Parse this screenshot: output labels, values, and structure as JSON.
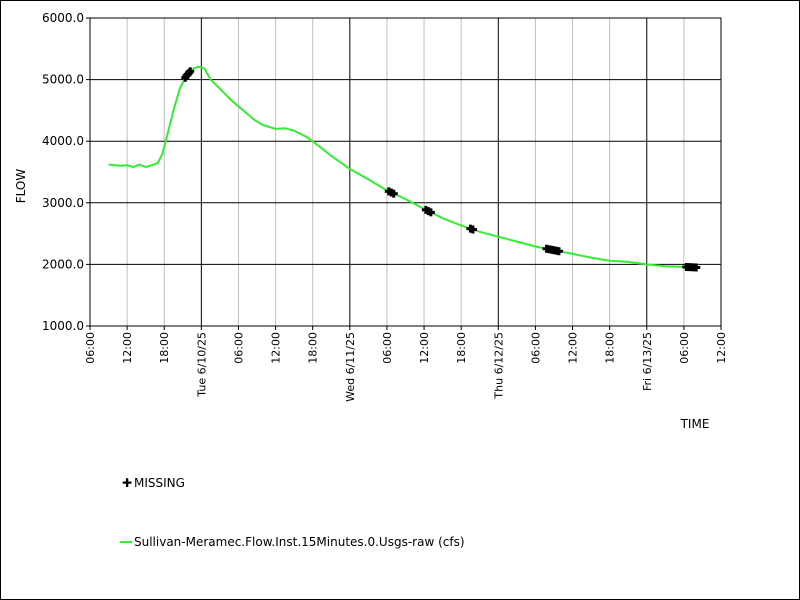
{
  "chart_data": {
    "type": "line",
    "title": "",
    "xlabel": "TIME",
    "ylabel": "FLOW",
    "ylim": [
      1000,
      6000
    ],
    "y_ticks": [
      1000,
      2000,
      3000,
      4000,
      5000,
      6000
    ],
    "y_tick_labels": [
      "1000.0",
      "2000.0",
      "3000.0",
      "4000.0",
      "5000.0",
      "6000.0"
    ],
    "x_range_hours": [
      -18,
      108
    ],
    "x_tick_labels": [
      {
        "h": -18,
        "label": "06:00"
      },
      {
        "h": -12,
        "label": "12:00"
      },
      {
        "h": -6,
        "label": "18:00"
      },
      {
        "h": 0,
        "label": "Tue 6/10/25",
        "major": true
      },
      {
        "h": 6,
        "label": "06:00"
      },
      {
        "h": 12,
        "label": "12:00"
      },
      {
        "h": 18,
        "label": "18:00"
      },
      {
        "h": 24,
        "label": "Wed 6/11/25",
        "major": true
      },
      {
        "h": 30,
        "label": "06:00"
      },
      {
        "h": 36,
        "label": "12:00"
      },
      {
        "h": 42,
        "label": "18:00"
      },
      {
        "h": 48,
        "label": "Thu 6/12/25",
        "major": true
      },
      {
        "h": 54,
        "label": "06:00"
      },
      {
        "h": 60,
        "label": "12:00"
      },
      {
        "h": 66,
        "label": "18:00"
      },
      {
        "h": 72,
        "label": "Fri 6/13/25",
        "major": true
      },
      {
        "h": 78,
        "label": "06:00"
      },
      {
        "h": 84,
        "label": "12:00"
      }
    ],
    "grid": true,
    "series": [
      {
        "name": "Sullivan-Meramec.Flow.Inst.15Minutes.0.Usgs-raw (cfs)",
        "color": "#33ee33",
        "points": [
          [
            -15,
            3620
          ],
          [
            -13,
            3600
          ],
          [
            -12,
            3610
          ],
          [
            -11,
            3580
          ],
          [
            -10,
            3620
          ],
          [
            -9,
            3580
          ],
          [
            -8,
            3610
          ],
          [
            -7,
            3650
          ],
          [
            -6.3,
            3800
          ],
          [
            -5.5,
            4100
          ],
          [
            -4.5,
            4500
          ],
          [
            -3.5,
            4850
          ],
          [
            -2.5,
            5050
          ],
          [
            -1.5,
            5170
          ],
          [
            -0.5,
            5210
          ],
          [
            0.5,
            5180
          ],
          [
            1.5,
            5000
          ],
          [
            3,
            4850
          ],
          [
            5,
            4650
          ],
          [
            7,
            4480
          ],
          [
            8.5,
            4350
          ],
          [
            10,
            4260
          ],
          [
            11,
            4230
          ],
          [
            12,
            4200
          ],
          [
            13.5,
            4210
          ],
          [
            15,
            4170
          ],
          [
            17,
            4070
          ],
          [
            19,
            3920
          ],
          [
            21,
            3760
          ],
          [
            24,
            3550
          ],
          [
            27,
            3380
          ],
          [
            30,
            3200
          ],
          [
            33,
            3060
          ],
          [
            36,
            2900
          ],
          [
            39,
            2750
          ],
          [
            42,
            2630
          ],
          [
            45,
            2530
          ],
          [
            48,
            2450
          ],
          [
            51,
            2370
          ],
          [
            54,
            2290
          ],
          [
            57,
            2230
          ],
          [
            60,
            2170
          ],
          [
            63,
            2110
          ],
          [
            66,
            2060
          ],
          [
            69,
            2040
          ],
          [
            72,
            2000
          ],
          [
            75,
            1970
          ],
          [
            78,
            1960
          ],
          [
            80,
            1950
          ]
        ]
      }
    ],
    "missing_marker_hours": [
      -2.6,
      -2.4,
      -2.2,
      -2.0,
      -1.8,
      30.3,
      30.7,
      31.1,
      36.3,
      36.7,
      37.1,
      43.5,
      43.9,
      55.8,
      56.2,
      56.6,
      57.0,
      57.4,
      57.8,
      78.4,
      78.8,
      79.2,
      79.6,
      80.0
    ]
  },
  "legend": {
    "missing_symbol": "✚",
    "missing_label": "MISSING",
    "series_label": "Sullivan-Meramec.Flow.Inst.15Minutes.0.Usgs-raw (cfs)",
    "series_color": "#33ee33"
  }
}
